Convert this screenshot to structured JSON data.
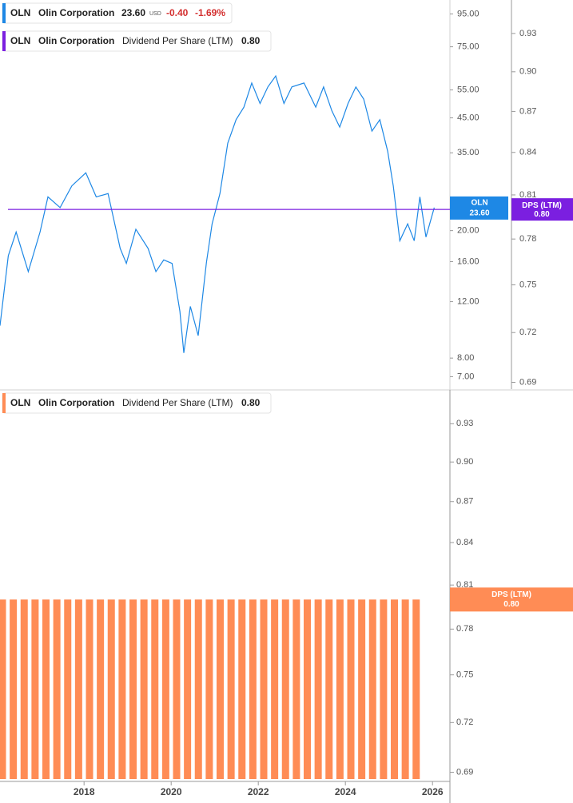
{
  "chart_data": [
    {
      "type": "line",
      "scale": "log",
      "x": [
        2016.07,
        2016.26,
        2016.44,
        2016.72,
        2016.99,
        2017.17,
        2017.45,
        2017.72,
        2018.04,
        2018.28,
        2018.55,
        2018.83,
        2018.97,
        2019.19,
        2019.47,
        2019.65,
        2019.83,
        2020.02,
        2020.2,
        2020.29,
        2020.44,
        2020.62,
        2020.81,
        2020.94,
        2021.12,
        2021.3,
        2021.49,
        2021.67,
        2021.85,
        2022.04,
        2022.22,
        2022.4,
        2022.59,
        2022.77,
        2023.05,
        2023.32,
        2023.5,
        2023.69,
        2023.87,
        2024.06,
        2024.24,
        2024.42,
        2024.61,
        2024.79,
        2024.97,
        2025.1,
        2025.25,
        2025.43,
        2025.58,
        2025.71,
        2025.85,
        2026.04
      ],
      "xlim": [
        2016.07,
        2026.4
      ],
      "series": [
        {
          "ticker": "OLN",
          "name": "Olin Corporation",
          "color": "#1e88e5",
          "values": [
            10.1,
            16.7,
            19.8,
            14.9,
            19.8,
            25.5,
            23.6,
            27.6,
            30.3,
            25.5,
            26.1,
            17.6,
            15.8,
            20.2,
            17.6,
            14.9,
            16.2,
            15.8,
            11.2,
            8.3,
            11.6,
            9.4,
            15.9,
            21.0,
            26.1,
            37.5,
            44.4,
            48.6,
            57.8,
            49.9,
            56.2,
            60.8,
            49.9,
            56.2,
            57.8,
            48.6,
            56.2,
            47.3,
            42.1,
            49.9,
            56.2,
            51.5,
            40.9,
            44.4,
            35.4,
            27.6,
            18.6,
            21.0,
            18.6,
            25.5,
            19.1,
            23.6
          ],
          "price_label": "23.60",
          "currency": "USD",
          "change": "-0.40",
          "change_pct": "-1.69%"
        },
        {
          "ticker": "OLN",
          "company": "Olin Corporation",
          "name": "Dividend Per Share (LTM)",
          "short_name": "DPS (LTM)",
          "value": 0.8,
          "value_label": "0.80",
          "axis": "y2",
          "color": "#7b1fe0"
        }
      ],
      "ylim": [
        6.4,
        105
      ],
      "yticks": [
        {
          "value": 95,
          "label": "95.00"
        },
        {
          "value": 75,
          "label": "75.00"
        },
        {
          "value": 55,
          "label": "55.00"
        },
        {
          "value": 45,
          "label": "45.00"
        },
        {
          "value": 35,
          "label": "35.00"
        },
        {
          "value": 20,
          "label": "20.00"
        },
        {
          "value": 16,
          "label": "16.00"
        },
        {
          "value": 12,
          "label": "12.00"
        },
        {
          "value": 8,
          "label": "8.00"
        },
        {
          "value": 7,
          "label": "7.00"
        }
      ],
      "y2lim": [
        0.686,
        0.957
      ],
      "y2ticks": [
        0.93,
        {
          "value": 0.9,
          "label": "0.90"
        },
        0.87,
        0.84,
        0.81,
        0.78,
        0.75,
        0.72,
        0.69
      ]
    },
    {
      "type": "bar",
      "scale": "log",
      "x": [
        2016.125,
        2016.375,
        2016.625,
        2016.875,
        2017.125,
        2017.375,
        2017.625,
        2017.875,
        2018.125,
        2018.375,
        2018.625,
        2018.875,
        2019.125,
        2019.375,
        2019.625,
        2019.875,
        2020.125,
        2020.375,
        2020.625,
        2020.875,
        2021.125,
        2021.375,
        2021.625,
        2021.875,
        2022.125,
        2022.375,
        2022.625,
        2022.875,
        2023.125,
        2023.375,
        2023.625,
        2023.875,
        2024.125,
        2024.375,
        2024.625,
        2024.875,
        2025.125,
        2025.375,
        2025.625
      ],
      "xlim": [
        2016.07,
        2026.4
      ],
      "xticks": [
        2018,
        2020,
        2022,
        2024,
        2026
      ],
      "series": [
        {
          "ticker": "OLN",
          "company": "Olin Corporation",
          "name": "Dividend Per Share (LTM)",
          "short_name": "DPS (LTM)",
          "value_label": "0.80",
          "color": "#ff8c55",
          "values": [
            0.8,
            0.8,
            0.8,
            0.8,
            0.8,
            0.8,
            0.8,
            0.8,
            0.8,
            0.8,
            0.8,
            0.8,
            0.8,
            0.8,
            0.8,
            0.8,
            0.8,
            0.8,
            0.8,
            0.8,
            0.8,
            0.8,
            0.8,
            0.8,
            0.8,
            0.8,
            0.8,
            0.8,
            0.8,
            0.8,
            0.8,
            0.8,
            0.8,
            0.8,
            0.8,
            0.8,
            0.8,
            0.8,
            0.8
          ]
        }
      ],
      "ylim": [
        0.686,
        0.956
      ],
      "yticks": [
        0.93,
        {
          "value": 0.9,
          "label": "0.90"
        },
        0.87,
        0.84,
        0.81,
        0.78,
        0.75,
        0.72,
        0.69
      ]
    }
  ]
}
